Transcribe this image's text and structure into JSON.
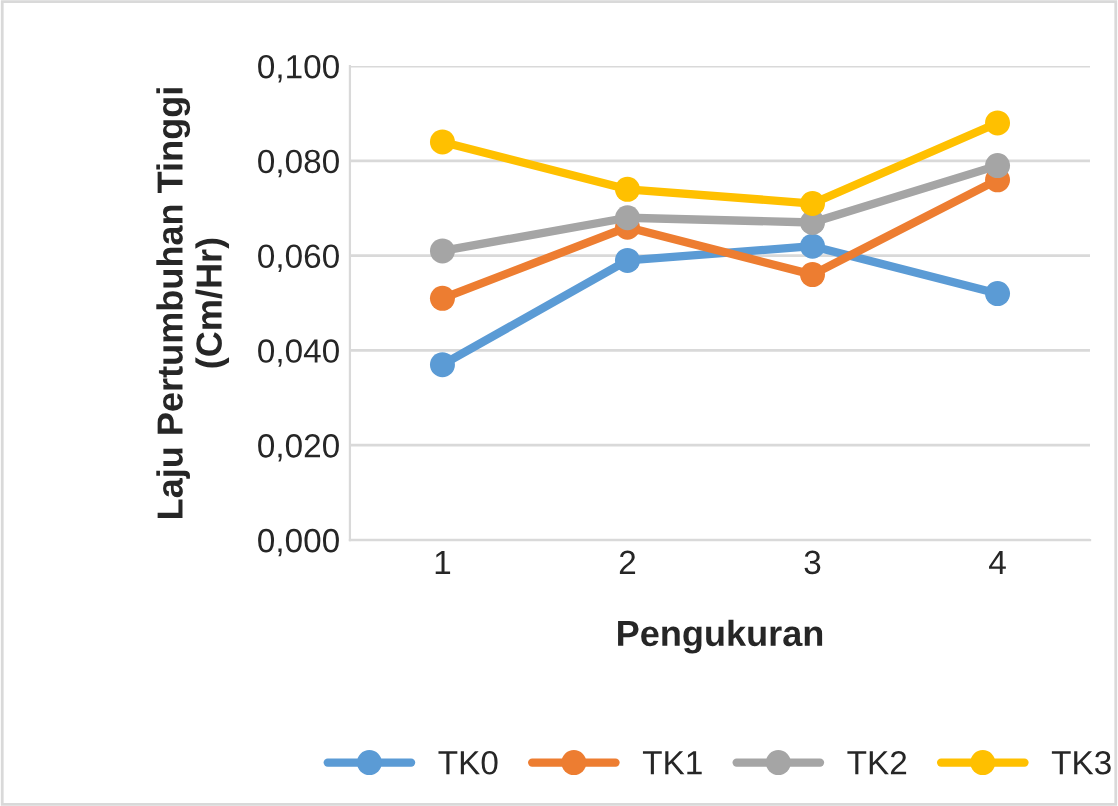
{
  "chart_data": {
    "type": "line",
    "xlabel": "Pengukuran",
    "ylabel": "Laju Pertumbuhan Tinggi\n(Cm/Hr)",
    "categories": [
      "1",
      "2",
      "3",
      "4"
    ],
    "series": [
      {
        "name": "TK0",
        "color": "#5b9bd5",
        "values": [
          0.037,
          0.059,
          0.062,
          0.052
        ]
      },
      {
        "name": "TK1",
        "color": "#ed7d31",
        "values": [
          0.051,
          0.066,
          0.056,
          0.076
        ]
      },
      {
        "name": "TK2",
        "color": "#a5a5a5",
        "values": [
          0.061,
          0.068,
          0.067,
          0.079
        ]
      },
      {
        "name": "TK3",
        "color": "#ffc000",
        "values": [
          0.084,
          0.074,
          0.071,
          0.088
        ]
      }
    ],
    "ylim": [
      0,
      0.1
    ],
    "yticks": [
      {
        "value": 0,
        "label": "0,000"
      },
      {
        "value": 0.02,
        "label": "0,020"
      },
      {
        "value": 0.04,
        "label": "0,040"
      },
      {
        "value": 0.06,
        "label": "0,060"
      },
      {
        "value": 0.08,
        "label": "0,080"
      },
      {
        "value": 0.1,
        "label": "0,100"
      }
    ],
    "grid": "y",
    "legend": "bottom",
    "marker": "circle",
    "line_style": "solid"
  }
}
